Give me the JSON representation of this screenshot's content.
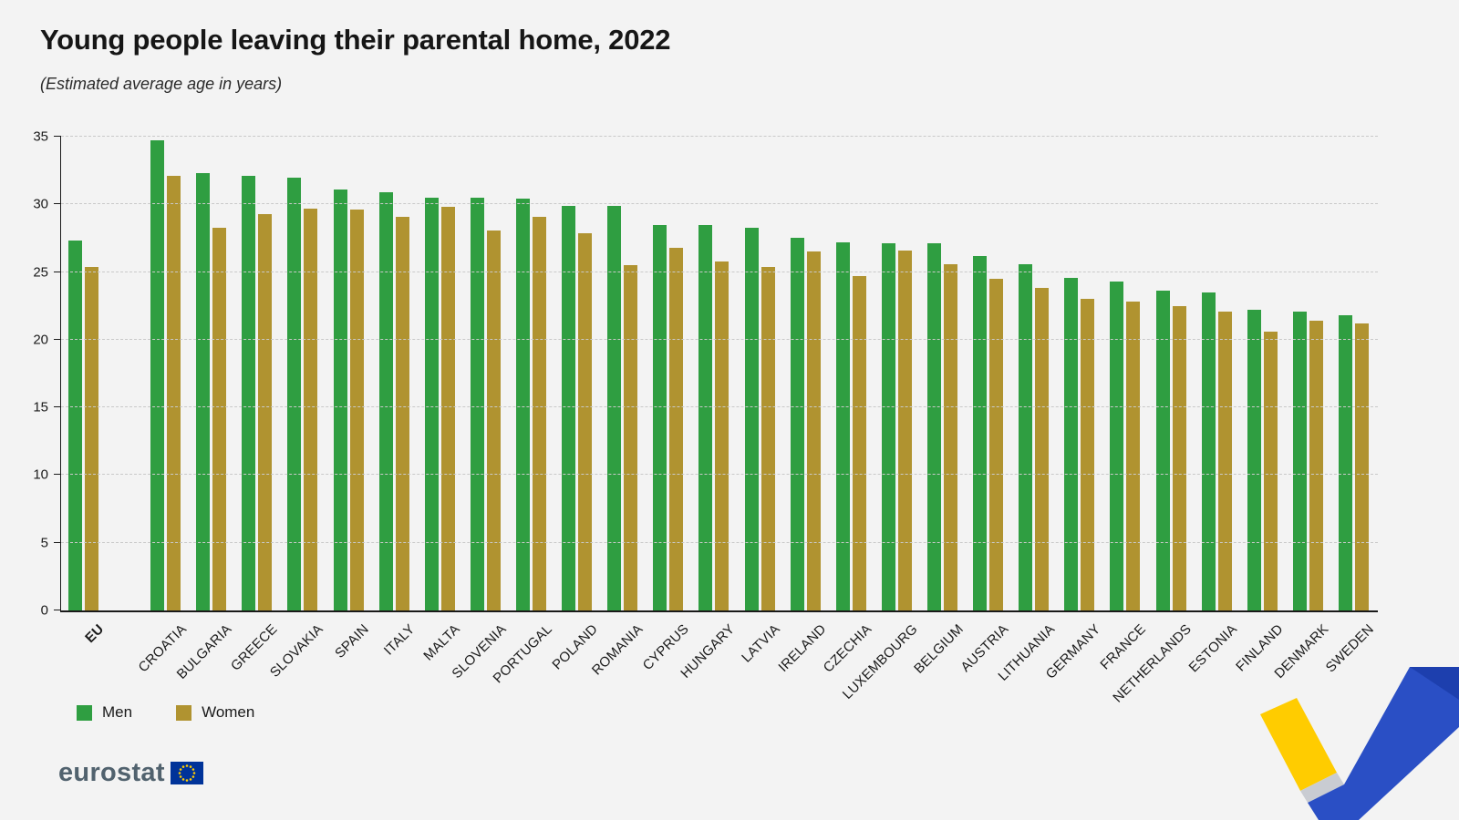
{
  "title": "Young people leaving their parental home, 2022",
  "subtitle": "(Estimated average age in years)",
  "legend": {
    "men_label": "Men",
    "women_label": "Women"
  },
  "branding": {
    "logo_text": "eurostat"
  },
  "colors": {
    "men": "#2f9e41",
    "women": "#b09330",
    "background": "#f3f3f3",
    "grid": "#c9c9c9",
    "axis": "#1a1a1a",
    "eu_blue": "#003399",
    "eu_yellow": "#ffcc00",
    "logo_text_color": "#51626e"
  },
  "chart_data": {
    "type": "bar",
    "title": "Young people leaving their parental home, 2022",
    "subtitle": "(Estimated average age in years)",
    "xlabel": "",
    "ylabel": "",
    "ylim": [
      0,
      35
    ],
    "yticks": [
      0,
      5,
      10,
      15,
      20,
      25,
      30,
      35
    ],
    "grid": "horizontal-dashed",
    "legend_position": "bottom-left",
    "categories": [
      "EU",
      "CROATIA",
      "BULGARIA",
      "GREECE",
      "SLOVAKIA",
      "SPAIN",
      "ITALY",
      "MALTA",
      "SLOVENIA",
      "PORTUGAL",
      "POLAND",
      "ROMANIA",
      "CYPRUS",
      "HUNGARY",
      "LATVIA",
      "IRELAND",
      "CZECHIA",
      "LUXEMBOURG",
      "BELGIUM",
      "AUSTRIA",
      "LITHUANIA",
      "GERMANY",
      "FRANCE",
      "NETHERLANDS",
      "ESTONIA",
      "FINLAND",
      "DENMARK",
      "SWEDEN"
    ],
    "series": [
      {
        "name": "Men",
        "values": [
          27.3,
          34.7,
          32.3,
          32.1,
          32.0,
          31.1,
          30.9,
          30.5,
          30.5,
          30.4,
          29.9,
          29.9,
          28.5,
          28.5,
          28.3,
          27.5,
          27.2,
          27.1,
          27.1,
          26.2,
          25.6,
          24.6,
          24.3,
          23.6,
          23.5,
          22.2,
          22.1,
          21.8
        ]
      },
      {
        "name": "Women",
        "values": [
          25.4,
          32.1,
          28.3,
          29.3,
          29.7,
          29.6,
          29.1,
          29.8,
          28.1,
          29.1,
          27.9,
          25.5,
          26.8,
          25.8,
          25.4,
          26.5,
          24.7,
          26.6,
          25.6,
          24.5,
          23.8,
          23.0,
          22.8,
          22.5,
          22.1,
          20.6,
          21.4,
          21.2
        ]
      }
    ]
  }
}
